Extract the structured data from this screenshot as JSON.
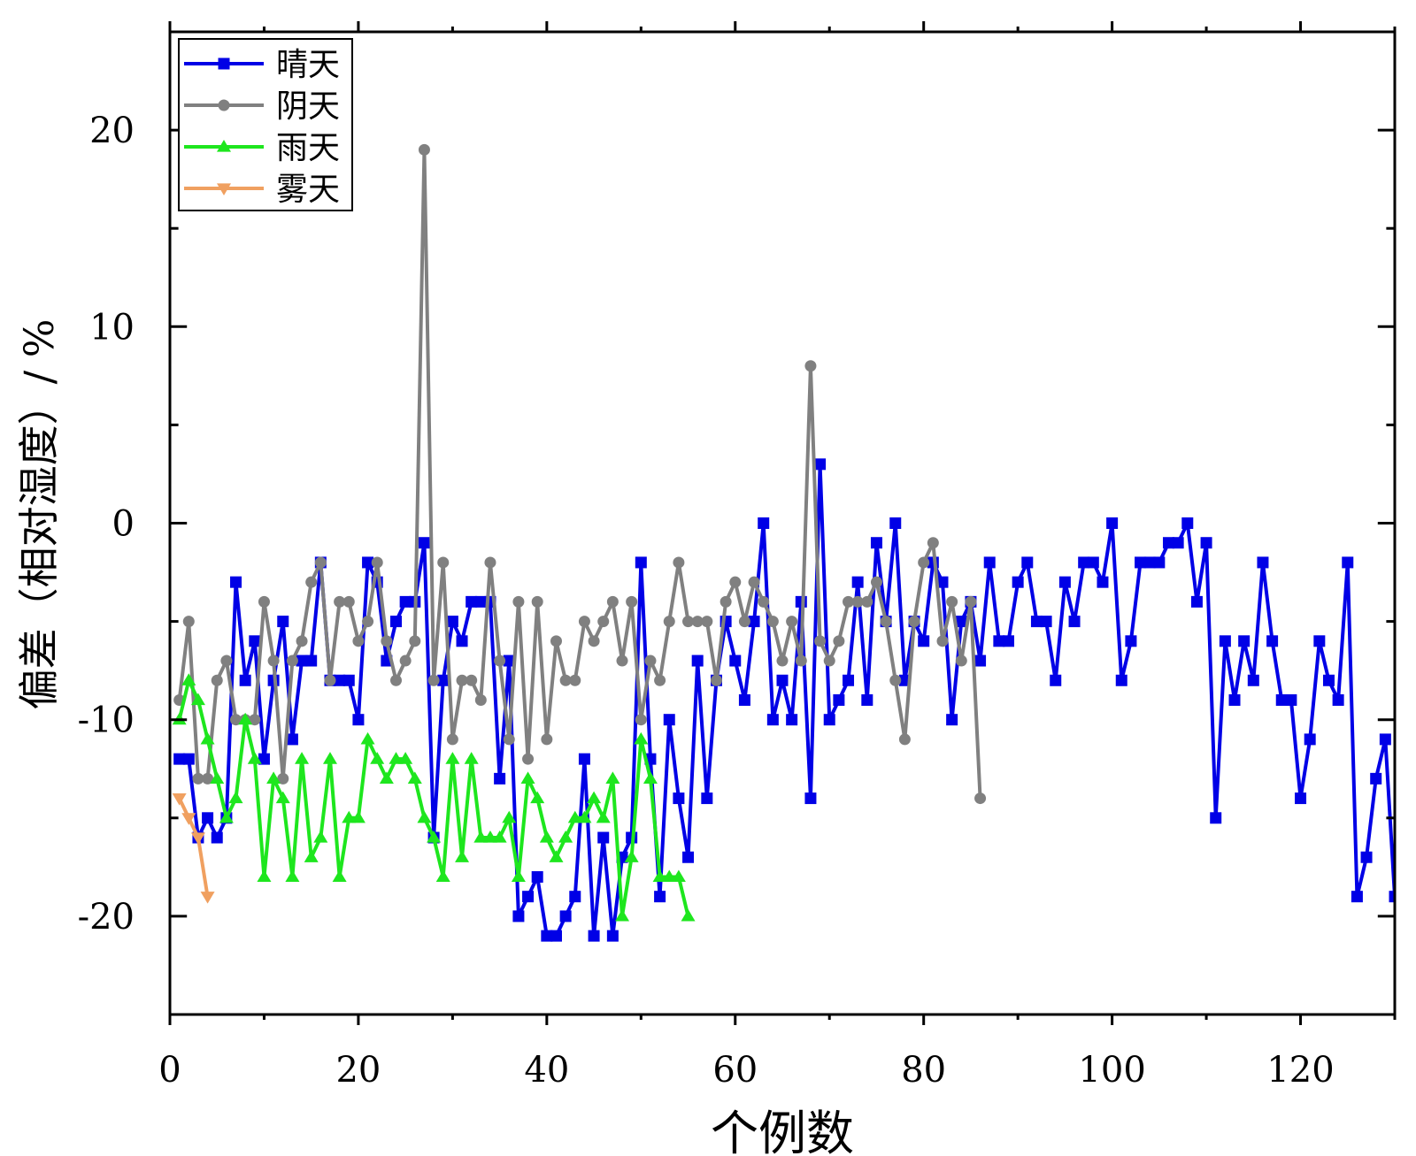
{
  "chart_data": {
    "type": "line",
    "xlabel": "个例数",
    "ylabel": "偏差（相对湿度）/ %",
    "xlim": [
      0,
      130
    ],
    "ylim": [
      -25,
      25
    ],
    "x_ticks": [
      0,
      20,
      40,
      60,
      80,
      100,
      120
    ],
    "y_ticks": [
      -20,
      -10,
      0,
      10,
      20
    ],
    "x_tick_labels": [
      "0",
      "20",
      "40",
      "60",
      "80",
      "100",
      "120"
    ],
    "y_tick_labels": [
      "-20",
      "-10",
      "0",
      "10",
      "20"
    ],
    "grid": false,
    "legend_position": "top-left",
    "series": [
      {
        "name": "晴天",
        "color": "#0000e6",
        "marker": "square",
        "values": [
          -12,
          -12,
          -16,
          -15,
          -16,
          -15,
          -3,
          -8,
          -6,
          -12,
          -8,
          -5,
          -11,
          -7,
          -7,
          -2,
          -8,
          -8,
          -8,
          -10,
          -2,
          -3,
          -7,
          -5,
          -4,
          -4,
          -1,
          -16,
          -8,
          -5,
          -6,
          -4,
          -4,
          -4,
          -13,
          -7,
          -20,
          -19,
          -18,
          -21,
          -21,
          -20,
          -19,
          -12,
          -21,
          -16,
          -21,
          -17,
          -16,
          -2,
          -12,
          -19,
          -10,
          -14,
          -17,
          -7,
          -14,
          -8,
          -5,
          -7,
          -9,
          -5,
          0,
          -10,
          -8,
          -10,
          -4,
          -14,
          3,
          -10,
          -9,
          -8,
          -3,
          -9,
          -1,
          -5,
          0,
          -8,
          -5,
          -6,
          -2,
          -3,
          -10,
          -5,
          -4,
          -7,
          -2,
          -6,
          -6,
          -3,
          -2,
          -5,
          -5,
          -8,
          -3,
          -5,
          -2,
          -2,
          -3,
          0,
          -8,
          -6,
          -2,
          -2,
          -2,
          -1,
          -1,
          0,
          -4,
          -1,
          -15,
          -6,
          -9,
          -6,
          -8,
          -2,
          -6,
          -9,
          -9,
          -14,
          -11,
          -6,
          -8,
          -9,
          -2,
          -19,
          -17,
          -13,
          -11,
          -19
        ]
      },
      {
        "name": "阴天",
        "color": "#808080",
        "marker": "circle",
        "values": [
          -9,
          -5,
          -13,
          -13,
          -8,
          -7,
          -10,
          -10,
          -10,
          -4,
          -7,
          -13,
          -7,
          -6,
          -3,
          -2,
          -8,
          -4,
          -4,
          -6,
          -5,
          -2,
          -6,
          -8,
          -7,
          -6,
          19,
          -8,
          -2,
          -11,
          -8,
          -8,
          -9,
          -2,
          -7,
          -11,
          -4,
          -12,
          -4,
          -11,
          -6,
          -8,
          -8,
          -5,
          -6,
          -5,
          -4,
          -7,
          -4,
          -10,
          -7,
          -8,
          -5,
          -2,
          -5,
          -5,
          -5,
          -8,
          -4,
          -3,
          -5,
          -3,
          -4,
          -5,
          -7,
          -5,
          -7,
          8,
          -6,
          -7,
          -6,
          -4,
          -4,
          -4,
          -3,
          -5,
          -8,
          -11,
          -5,
          -2,
          -1,
          -6,
          -4,
          -7,
          -4,
          -14
        ]
      },
      {
        "name": "雨天",
        "color": "#1ee61e",
        "marker": "triangle-up",
        "values": [
          -10,
          -8,
          -9,
          -11,
          -13,
          -15,
          -14,
          -10,
          -12,
          -18,
          -13,
          -14,
          -18,
          -12,
          -17,
          -16,
          -12,
          -18,
          -15,
          -15,
          -11,
          -12,
          -13,
          -12,
          -12,
          -13,
          -15,
          -16,
          -18,
          -12,
          -17,
          -12,
          -16,
          -16,
          -16,
          -15,
          -18,
          -13,
          -14,
          -16,
          -17,
          -16,
          -15,
          -15,
          -14,
          -15,
          -13,
          -20,
          -17,
          -11,
          -13,
          -18,
          -18,
          -18,
          -20
        ]
      },
      {
        "name": "雾天",
        "color": "#f0a060",
        "marker": "triangle-down",
        "values": [
          -14,
          -15,
          -16,
          -19
        ]
      }
    ]
  }
}
